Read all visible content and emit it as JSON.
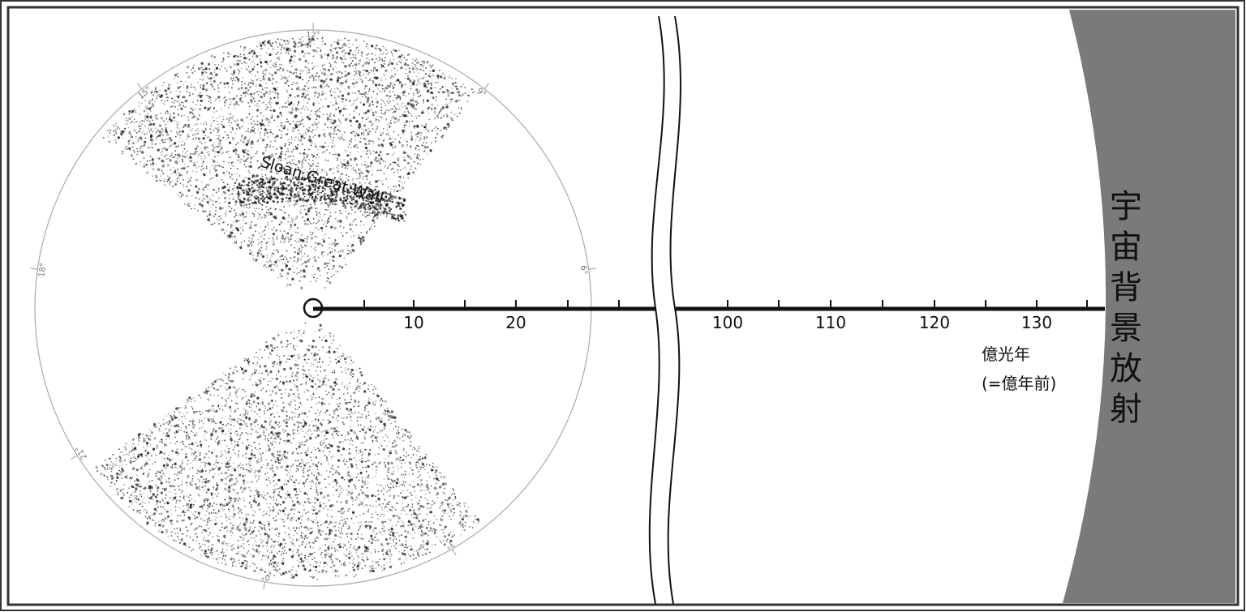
{
  "survey": {
    "structure_label": "Sloan Great Wall",
    "angle_labels": [
      "12°",
      "15°",
      "9°",
      "18°",
      "6°",
      "21°",
      "3°",
      "0°"
    ]
  },
  "scale": {
    "ticks_left": [
      "10",
      "20"
    ],
    "ticks_right": [
      "100",
      "110",
      "120",
      "130"
    ],
    "unit_line1": "億光年",
    "unit_line2": "(=億年前)"
  },
  "cmb": {
    "label": "宇宙背景放射",
    "color": "#7a7a7a"
  },
  "colors": {
    "frame": "#333333",
    "galaxies": "#111111",
    "circle": "#aaaaaa"
  }
}
